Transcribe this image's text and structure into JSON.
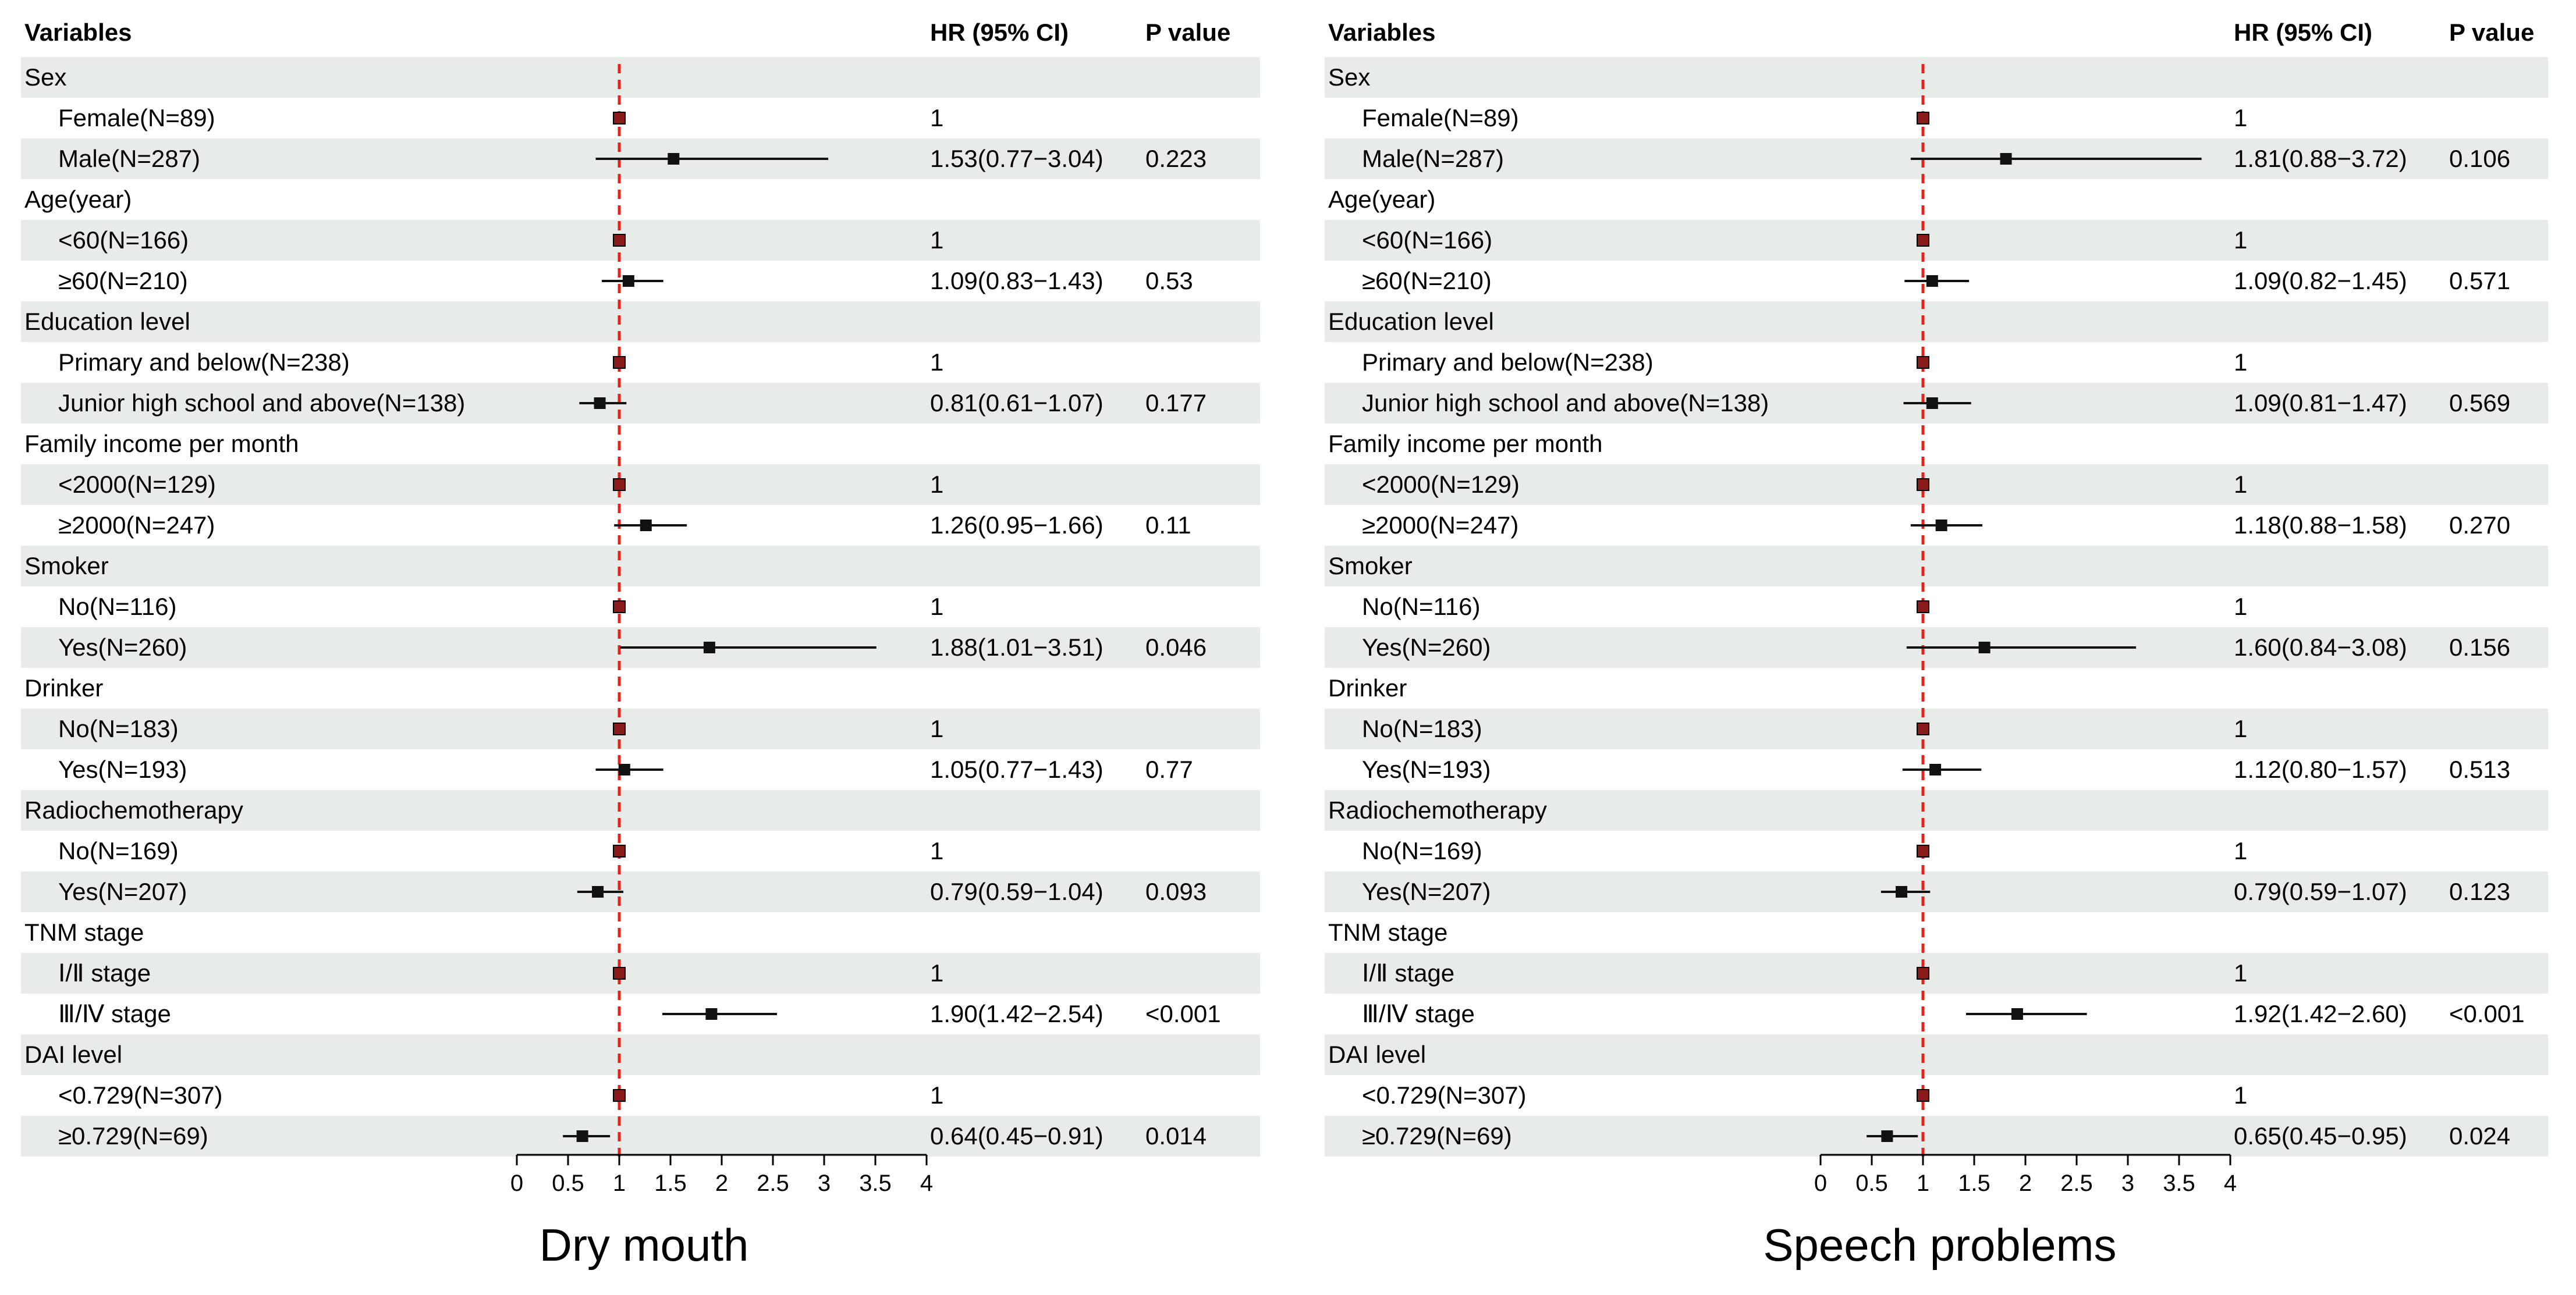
{
  "chart_data": [
    {
      "type": "forest",
      "title": "Dry mouth",
      "headers": {
        "variables": "Variables",
        "hr": "HR (95% CI)",
        "p": "P value"
      },
      "reference_line": 1,
      "xlim": [
        0,
        4
      ],
      "ticks": [
        0,
        0.5,
        1,
        1.5,
        2,
        2.5,
        3,
        3.5,
        4
      ],
      "tick_labels": [
        "0",
        "0.5",
        "1",
        "1.5",
        "2",
        "2.5",
        "3",
        "3.5",
        "4"
      ],
      "rows": [
        {
          "label": "Sex",
          "indent": 0
        },
        {
          "label": "Female(N=89)",
          "indent": 1,
          "hr_text": "1",
          "hr": 1,
          "lo": 1,
          "hi": 1
        },
        {
          "label": "Male(N=287)",
          "indent": 1,
          "hr_text": "1.53(0.77−3.04)",
          "p": "0.223",
          "hr": 1.53,
          "lo": 0.77,
          "hi": 3.04
        },
        {
          "label": "Age(year)",
          "indent": 0
        },
        {
          "label": "<60(N=166)",
          "indent": 1,
          "hr_text": "1",
          "hr": 1,
          "lo": 1,
          "hi": 1
        },
        {
          "label": "≥60(N=210)",
          "indent": 1,
          "hr_text": "1.09(0.83−1.43)",
          "p": "0.53",
          "hr": 1.09,
          "lo": 0.83,
          "hi": 1.43
        },
        {
          "label": "Education level",
          "indent": 0
        },
        {
          "label": "Primary and below(N=238)",
          "indent": 1,
          "hr_text": "1",
          "hr": 1,
          "lo": 1,
          "hi": 1
        },
        {
          "label": "Junior high school and above(N=138)",
          "indent": 1,
          "hr_text": "0.81(0.61−1.07)",
          "p": "0.177",
          "hr": 0.81,
          "lo": 0.61,
          "hi": 1.07
        },
        {
          "label": "Family income per month",
          "indent": 0
        },
        {
          "label": "<2000(N=129)",
          "indent": 1,
          "hr_text": "1",
          "hr": 1,
          "lo": 1,
          "hi": 1
        },
        {
          "label": "≥2000(N=247)",
          "indent": 1,
          "hr_text": "1.26(0.95−1.66)",
          "p": "0.11",
          "hr": 1.26,
          "lo": 0.95,
          "hi": 1.66
        },
        {
          "label": "Smoker",
          "indent": 0
        },
        {
          "label": "No(N=116)",
          "indent": 1,
          "hr_text": "1",
          "hr": 1,
          "lo": 1,
          "hi": 1
        },
        {
          "label": "Yes(N=260)",
          "indent": 1,
          "hr_text": "1.88(1.01−3.51)",
          "p": "0.046",
          "hr": 1.88,
          "lo": 1.01,
          "hi": 3.51
        },
        {
          "label": "Drinker",
          "indent": 0
        },
        {
          "label": "No(N=183)",
          "indent": 1,
          "hr_text": "1",
          "hr": 1,
          "lo": 1,
          "hi": 1
        },
        {
          "label": "Yes(N=193)",
          "indent": 1,
          "hr_text": "1.05(0.77−1.43)",
          "p": "0.77",
          "hr": 1.05,
          "lo": 0.77,
          "hi": 1.43
        },
        {
          "label": "Radiochemotherapy",
          "indent": 0
        },
        {
          "label": "No(N=169)",
          "indent": 1,
          "hr_text": "1",
          "hr": 1,
          "lo": 1,
          "hi": 1
        },
        {
          "label": "Yes(N=207)",
          "indent": 1,
          "hr_text": "0.79(0.59−1.04)",
          "p": "0.093",
          "hr": 0.79,
          "lo": 0.59,
          "hi": 1.04
        },
        {
          "label": "TNM stage",
          "indent": 0
        },
        {
          "label": "Ⅰ/Ⅱ stage",
          "indent": 1,
          "hr_text": "1",
          "hr": 1,
          "lo": 1,
          "hi": 1
        },
        {
          "label": "Ⅲ/Ⅳ stage",
          "indent": 1,
          "hr_text": "1.90(1.42−2.54)",
          "p": "<0.001",
          "hr": 1.9,
          "lo": 1.42,
          "hi": 2.54
        },
        {
          "label": "DAI level",
          "indent": 0
        },
        {
          "label": "<0.729(N=307)",
          "indent": 1,
          "hr_text": "1",
          "hr": 1,
          "lo": 1,
          "hi": 1
        },
        {
          "label": "≥0.729(N=69)",
          "indent": 1,
          "hr_text": "0.64(0.45−0.91)",
          "p": "0.014",
          "hr": 0.64,
          "lo": 0.45,
          "hi": 0.91
        }
      ]
    },
    {
      "type": "forest",
      "title": "Speech problems",
      "headers": {
        "variables": "Variables",
        "hr": "HR (95% CI)",
        "p": "P value"
      },
      "reference_line": 1,
      "xlim": [
        0,
        4
      ],
      "ticks": [
        0,
        0.5,
        1,
        1.5,
        2,
        2.5,
        3,
        3.5,
        4
      ],
      "tick_labels": [
        "0",
        "0.5",
        "1",
        "1.5",
        "2",
        "2.5",
        "3",
        "3.5",
        "4"
      ],
      "rows": [
        {
          "label": "Sex",
          "indent": 0
        },
        {
          "label": "Female(N=89)",
          "indent": 1,
          "hr_text": "1",
          "hr": 1,
          "lo": 1,
          "hi": 1
        },
        {
          "label": "Male(N=287)",
          "indent": 1,
          "hr_text": "1.81(0.88−3.72)",
          "p": "0.106",
          "hr": 1.81,
          "lo": 0.88,
          "hi": 3.72
        },
        {
          "label": "Age(year)",
          "indent": 0
        },
        {
          "label": "<60(N=166)",
          "indent": 1,
          "hr_text": "1",
          "hr": 1,
          "lo": 1,
          "hi": 1
        },
        {
          "label": "≥60(N=210)",
          "indent": 1,
          "hr_text": "1.09(0.82−1.45)",
          "p": "0.571",
          "hr": 1.09,
          "lo": 0.82,
          "hi": 1.45
        },
        {
          "label": "Education level",
          "indent": 0
        },
        {
          "label": "Primary and below(N=238)",
          "indent": 1,
          "hr_text": "1",
          "hr": 1,
          "lo": 1,
          "hi": 1
        },
        {
          "label": "Junior high school and above(N=138)",
          "indent": 1,
          "hr_text": "1.09(0.81−1.47)",
          "p": "0.569",
          "hr": 1.09,
          "lo": 0.81,
          "hi": 1.47
        },
        {
          "label": "Family income per month",
          "indent": 0
        },
        {
          "label": "<2000(N=129)",
          "indent": 1,
          "hr_text": "1",
          "hr": 1,
          "lo": 1,
          "hi": 1
        },
        {
          "label": "≥2000(N=247)",
          "indent": 1,
          "hr_text": "1.18(0.88−1.58)",
          "p": "0.270",
          "hr": 1.18,
          "lo": 0.88,
          "hi": 1.58
        },
        {
          "label": "Smoker",
          "indent": 0
        },
        {
          "label": "No(N=116)",
          "indent": 1,
          "hr_text": "1",
          "hr": 1,
          "lo": 1,
          "hi": 1
        },
        {
          "label": "Yes(N=260)",
          "indent": 1,
          "hr_text": "1.60(0.84−3.08)",
          "p": "0.156",
          "hr": 1.6,
          "lo": 0.84,
          "hi": 3.08
        },
        {
          "label": "Drinker",
          "indent": 0
        },
        {
          "label": "No(N=183)",
          "indent": 1,
          "hr_text": "1",
          "hr": 1,
          "lo": 1,
          "hi": 1
        },
        {
          "label": "Yes(N=193)",
          "indent": 1,
          "hr_text": "1.12(0.80−1.57)",
          "p": "0.513",
          "hr": 1.12,
          "lo": 0.8,
          "hi": 1.57
        },
        {
          "label": "Radiochemotherapy",
          "indent": 0
        },
        {
          "label": "No(N=169)",
          "indent": 1,
          "hr_text": "1",
          "hr": 1,
          "lo": 1,
          "hi": 1
        },
        {
          "label": "Yes(N=207)",
          "indent": 1,
          "hr_text": "0.79(0.59−1.07)",
          "p": "0.123",
          "hr": 0.79,
          "lo": 0.59,
          "hi": 1.07
        },
        {
          "label": "TNM stage",
          "indent": 0
        },
        {
          "label": "Ⅰ/Ⅱ stage",
          "indent": 1,
          "hr_text": "1",
          "hr": 1,
          "lo": 1,
          "hi": 1
        },
        {
          "label": "Ⅲ/Ⅳ stage",
          "indent": 1,
          "hr_text": "1.92(1.42−2.60)",
          "p": "<0.001",
          "hr": 1.92,
          "lo": 1.42,
          "hi": 2.6
        },
        {
          "label": "DAI level",
          "indent": 0
        },
        {
          "label": "<0.729(N=307)",
          "indent": 1,
          "hr_text": "1",
          "hr": 1,
          "lo": 1,
          "hi": 1
        },
        {
          "label": "≥0.729(N=69)",
          "indent": 1,
          "hr_text": "0.65(0.45−0.95)",
          "p": "0.024",
          "hr": 0.65,
          "lo": 0.45,
          "hi": 0.95
        }
      ]
    }
  ],
  "colors": {
    "stripe": "#e8ece8",
    "reference_line": "#e2231a",
    "marker": "#111111",
    "reference_marker": "#8b1a1a"
  }
}
